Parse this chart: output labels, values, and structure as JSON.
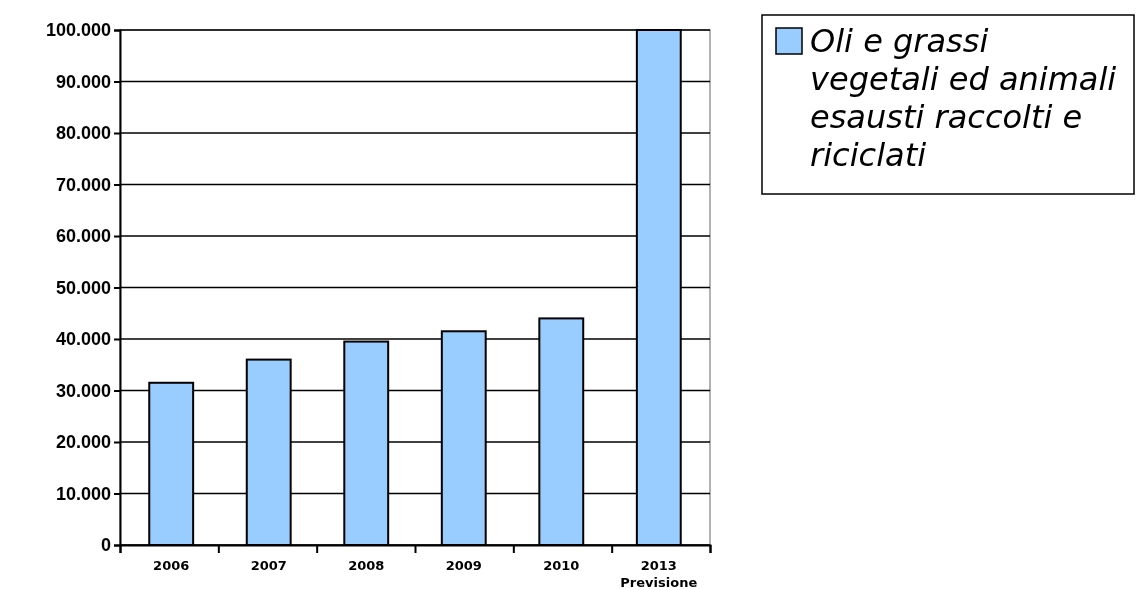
{
  "chart_data": {
    "type": "bar",
    "categories": [
      "2006",
      "2007",
      "2008",
      "2009",
      "2010",
      "2013\nPrevisione"
    ],
    "series": [
      {
        "name": "Oli e grassi vegetali ed animali esausti raccolti e riciclati",
        "color": "#99ccff",
        "values": [
          31500,
          36000,
          39500,
          41500,
          44000,
          100000
        ]
      }
    ],
    "ylim": [
      0,
      100000
    ],
    "yticks": [
      {
        "value": 0,
        "label": "0"
      },
      {
        "value": 10000,
        "label": "10.000"
      },
      {
        "value": 20000,
        "label": "20.000"
      },
      {
        "value": 30000,
        "label": "30.000"
      },
      {
        "value": 40000,
        "label": "40.000"
      },
      {
        "value": 50000,
        "label": "50.000"
      },
      {
        "value": 60000,
        "label": "60.000"
      },
      {
        "value": 70000,
        "label": "70.000"
      },
      {
        "value": 80000,
        "label": "80.000"
      },
      {
        "value": 90000,
        "label": "90.000"
      },
      {
        "value": 100000,
        "label": "100.000"
      }
    ],
    "grid": "y",
    "legend": "right"
  }
}
